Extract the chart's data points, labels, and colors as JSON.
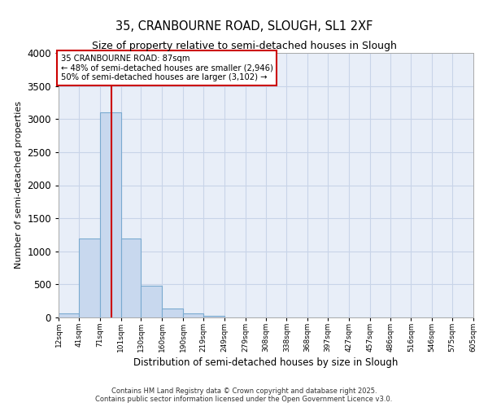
{
  "title_line1": "35, CRANBOURNE ROAD, SLOUGH, SL1 2XF",
  "title_line2": "Size of property relative to semi-detached houses in Slough",
  "xlabel": "Distribution of semi-detached houses by size in Slough",
  "ylabel": "Number of semi-detached properties",
  "footer_line1": "Contains HM Land Registry data © Crown copyright and database right 2025.",
  "footer_line2": "Contains public sector information licensed under the Open Government Licence v3.0.",
  "annotation_line1": "35 CRANBOURNE ROAD: 87sqm",
  "annotation_line2": "← 48% of semi-detached houses are smaller (2,946)",
  "annotation_line3": "50% of semi-detached houses are larger (3,102) →",
  "property_size_sqm": 87,
  "bins": [
    12,
    41,
    71,
    101,
    130,
    160,
    190,
    219,
    249,
    279,
    308,
    338,
    368,
    397,
    427,
    457,
    486,
    516,
    546,
    575,
    605
  ],
  "bin_labels": [
    "12sqm",
    "41sqm",
    "71sqm",
    "101sqm",
    "130sqm",
    "160sqm",
    "190sqm",
    "219sqm",
    "249sqm",
    "279sqm",
    "308sqm",
    "338sqm",
    "368sqm",
    "397sqm",
    "427sqm",
    "457sqm",
    "486sqm",
    "516sqm",
    "546sqm",
    "575sqm",
    "605sqm"
  ],
  "counts": [
    60,
    1200,
    3100,
    1200,
    480,
    140,
    60,
    30,
    5,
    0,
    0,
    0,
    0,
    0,
    0,
    0,
    0,
    0,
    0,
    0
  ],
  "bar_color": "#c8d8ee",
  "bar_edge_color": "#7aaad0",
  "vline_color": "#cc0000",
  "annotation_box_edge": "#cc0000",
  "annotation_box_face": "#ffffff",
  "grid_color": "#c8d4e8",
  "background_color": "#ffffff",
  "plot_background": "#e8eef8",
  "ylim": [
    0,
    4000
  ],
  "yticks": [
    0,
    500,
    1000,
    1500,
    2000,
    2500,
    3000,
    3500,
    4000
  ]
}
